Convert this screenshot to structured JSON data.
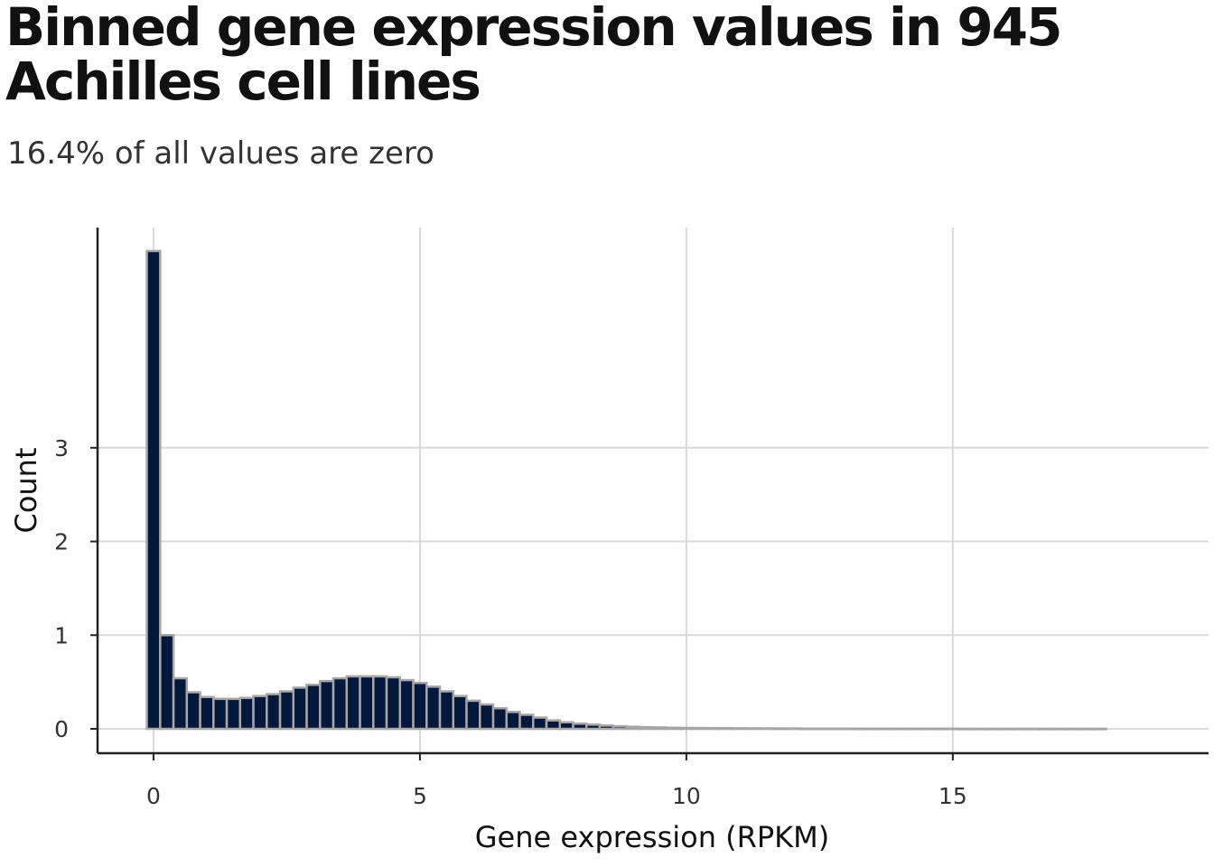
{
  "chart_data": {
    "type": "bar",
    "title": "Binned gene expression values in 945 Achilles cell lines",
    "subtitle": "16.4% of all values are zero",
    "xlabel": "Gene expression (RPKM)",
    "ylabel": "Count",
    "xlim": [
      -1.05,
      19.8
    ],
    "ylim": [
      -0.26,
      5.35
    ],
    "x_ticks": [
      0,
      5,
      10,
      15
    ],
    "x_tick_labels": [
      "0",
      "5",
      "10",
      "15"
    ],
    "y_ticks": [
      0,
      1,
      2,
      3
    ],
    "y_tick_labels": [
      "0",
      "1",
      "2",
      "3"
    ],
    "grid": true,
    "legend": "none",
    "bin_width": 0.25,
    "bin_centers": [
      0,
      0.25,
      0.5,
      0.75,
      1,
      1.25,
      1.5,
      1.75,
      2,
      2.25,
      2.5,
      2.75,
      3,
      3.25,
      3.5,
      3.75,
      4,
      4.25,
      4.5,
      4.75,
      5,
      5.25,
      5.5,
      5.75,
      6,
      6.25,
      6.5,
      6.75,
      7,
      7.25,
      7.5,
      7.75,
      8,
      8.25,
      8.5,
      8.75,
      9,
      9.25,
      9.5,
      9.75,
      10,
      10.25,
      10.5,
      10.75,
      11,
      11.25,
      11.5,
      11.75,
      12,
      12.25,
      12.5,
      12.75,
      13,
      13.25,
      13.5,
      13.75,
      14,
      14.25,
      14.5,
      14.75,
      15,
      15.25,
      15.5,
      15.75,
      16,
      16.25,
      16.5,
      16.75,
      17,
      17.25,
      17.5,
      17.75
    ],
    "values": [
      5.1,
      1.0,
      0.54,
      0.39,
      0.34,
      0.32,
      0.32,
      0.33,
      0.35,
      0.37,
      0.4,
      0.44,
      0.47,
      0.51,
      0.54,
      0.56,
      0.56,
      0.56,
      0.55,
      0.52,
      0.49,
      0.45,
      0.4,
      0.35,
      0.3,
      0.26,
      0.22,
      0.18,
      0.15,
      0.12,
      0.09,
      0.07,
      0.055,
      0.045,
      0.035,
      0.028,
      0.022,
      0.018,
      0.015,
      0.012,
      0.01,
      0.009,
      0.008,
      0.007,
      0.006,
      0.005,
      0.005,
      0.004,
      0.004,
      0.003,
      0.003,
      0.003,
      0.003,
      0.002,
      0.002,
      0.002,
      0.002,
      0.002,
      0.002,
      0.002,
      0.002,
      0.001,
      0.001,
      0.001,
      0.001,
      0.001,
      0.001,
      0.001,
      0.001,
      0.001,
      0.001,
      0.001
    ],
    "bar_fill": "#03183a",
    "bar_stroke": "#a6a6a6",
    "grid_color": "#d9d9d9",
    "axis_color": "#222222"
  }
}
